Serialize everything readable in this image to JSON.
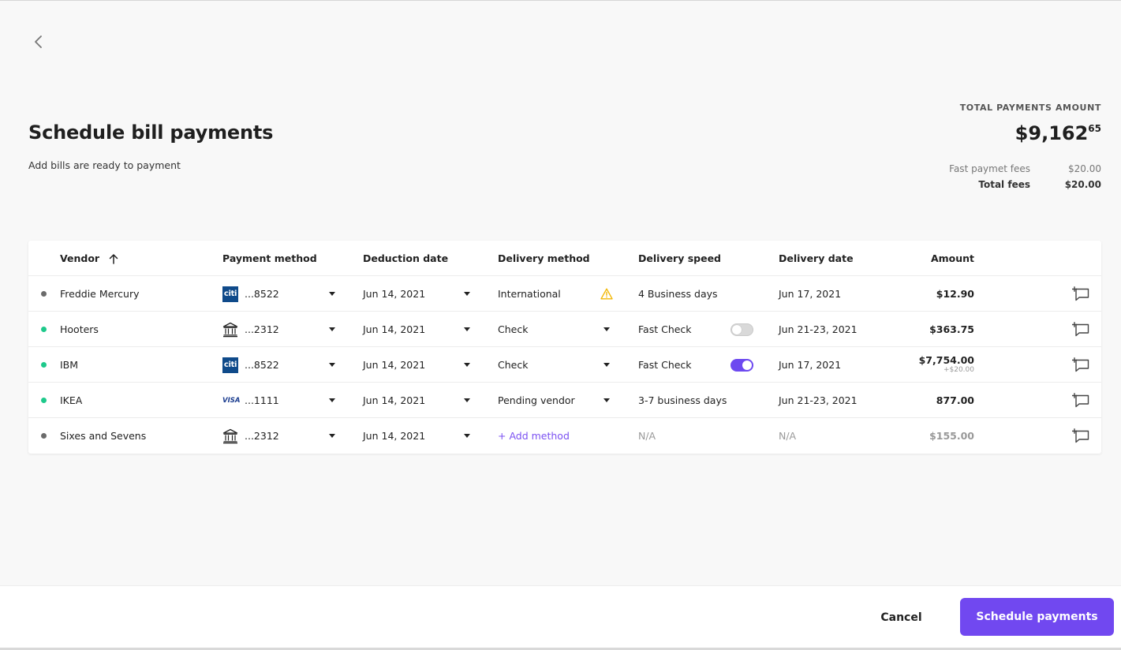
{
  "page": {
    "title": "Schedule bill payments",
    "subtitle": "Add bills are ready to payment",
    "back_icon": "chevron-left-icon"
  },
  "summary": {
    "label": "TOTAL PAYMENTS AMOUNT",
    "amount_main": "$9,162",
    "amount_cents": "65",
    "fees": [
      {
        "label": "Fast paymet fees",
        "value": "$20.00"
      },
      {
        "label": "Total fees",
        "value": "$20.00"
      }
    ]
  },
  "table": {
    "headers": {
      "vendor": "Vendor",
      "payment_method": "Payment method",
      "deduction_date": "Deduction date",
      "delivery_method": "Delivery method",
      "delivery_speed": "Delivery speed",
      "delivery_date": "Delivery date",
      "amount": "Amount"
    },
    "sort_icon": "arrow-up-icon",
    "rows": [
      {
        "status_color": "#6b6b6b",
        "vendor": "Freddie Mercury",
        "pm_type": "citi",
        "pm_logo_text": "citi",
        "pm_last": "...8522",
        "deduction_date": "Jun 14, 2021",
        "delivery_method": "International",
        "dm_icon": "warning-icon",
        "delivery_speed": "4 Business days",
        "toggle": null,
        "delivery_date": "Jun 17, 2021",
        "amount": "$12.90",
        "amount_sub": ""
      },
      {
        "status_color": "#1ec98b",
        "vendor": "Hooters",
        "pm_type": "bank",
        "pm_logo_text": "",
        "pm_last": "...2312",
        "deduction_date": "Jun 14, 2021",
        "delivery_method": "Check",
        "dm_icon": "caret",
        "delivery_speed": "Fast Check",
        "toggle": false,
        "delivery_date": "Jun 21-23, 2021",
        "amount": "$363.75",
        "amount_sub": ""
      },
      {
        "status_color": "#1ec98b",
        "vendor": "IBM",
        "pm_type": "citi",
        "pm_logo_text": "citi",
        "pm_last": "...8522",
        "deduction_date": "Jun 14, 2021",
        "delivery_method": "Check",
        "dm_icon": "caret",
        "delivery_speed": "Fast Check",
        "toggle": true,
        "delivery_date": "Jun 17, 2021",
        "amount": "$7,754.00",
        "amount_sub": "+$20.00"
      },
      {
        "status_color": "#1ec98b",
        "vendor": "IKEA",
        "pm_type": "visa",
        "pm_logo_text": "VISA",
        "pm_last": "...1111",
        "deduction_date": "Jun 14, 2021",
        "delivery_method": "Pending vendor",
        "dm_icon": "caret",
        "delivery_speed": "3-7 business days",
        "toggle": null,
        "delivery_date": "Jun 21-23, 2021",
        "amount": "877.00",
        "amount_sub": ""
      },
      {
        "status_color": "#6b6b6b",
        "vendor": "Sixes and Sevens",
        "pm_type": "bank",
        "pm_logo_text": "",
        "pm_last": "...2312",
        "deduction_date": "Jun 14, 2021",
        "delivery_method": "+ Add method",
        "dm_icon": "link",
        "delivery_speed": "N/A",
        "toggle": null,
        "delivery_date": "N/A",
        "amount": "$155.00",
        "amount_sub": "",
        "muted": true
      }
    ]
  },
  "footer": {
    "cancel_label": "Cancel",
    "primary_label": "Schedule payments"
  },
  "colors": {
    "accent": "#7148f0",
    "status_active": "#1ec98b",
    "status_inactive": "#6b6b6b",
    "warning": "#f2b705"
  }
}
